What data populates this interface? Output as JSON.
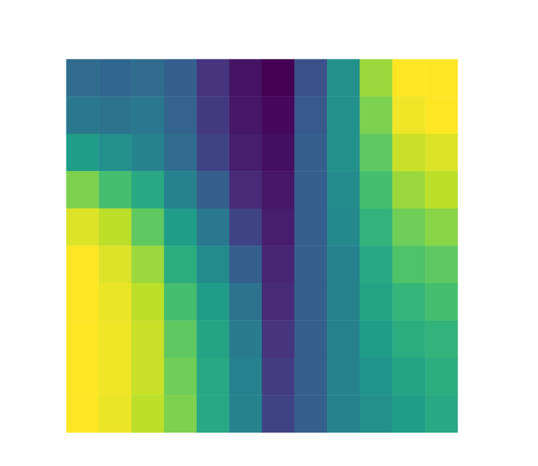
{
  "chart_data": {
    "type": "heatmap",
    "color": "viridis",
    "tick_labels": false,
    "zlim": [
      0,
      1
    ],
    "cells": [
      [
        0.35,
        0.33,
        0.35,
        0.3,
        0.15,
        0.05,
        0.0,
        0.25,
        0.5,
        0.85,
        1.0,
        1.0
      ],
      [
        0.4,
        0.38,
        0.4,
        0.32,
        0.17,
        0.06,
        0.02,
        0.28,
        0.5,
        0.8,
        0.98,
        1.0
      ],
      [
        0.55,
        0.5,
        0.45,
        0.35,
        0.2,
        0.08,
        0.04,
        0.3,
        0.5,
        0.75,
        0.92,
        0.95
      ],
      [
        0.8,
        0.7,
        0.6,
        0.45,
        0.3,
        0.12,
        0.06,
        0.3,
        0.48,
        0.7,
        0.85,
        0.9
      ],
      [
        0.95,
        0.9,
        0.75,
        0.55,
        0.4,
        0.2,
        0.08,
        0.3,
        0.47,
        0.65,
        0.78,
        0.82
      ],
      [
        1.0,
        0.95,
        0.85,
        0.62,
        0.48,
        0.3,
        0.1,
        0.3,
        0.45,
        0.6,
        0.72,
        0.75
      ],
      [
        1.0,
        0.97,
        0.9,
        0.7,
        0.55,
        0.38,
        0.12,
        0.3,
        0.45,
        0.58,
        0.66,
        0.7
      ],
      [
        1.0,
        0.98,
        0.92,
        0.75,
        0.58,
        0.42,
        0.15,
        0.3,
        0.45,
        0.55,
        0.62,
        0.65
      ],
      [
        1.0,
        0.98,
        0.92,
        0.78,
        0.6,
        0.44,
        0.18,
        0.3,
        0.45,
        0.52,
        0.58,
        0.62
      ],
      [
        1.0,
        0.97,
        0.9,
        0.8,
        0.6,
        0.45,
        0.2,
        0.3,
        0.45,
        0.5,
        0.55,
        0.6
      ]
    ]
  }
}
